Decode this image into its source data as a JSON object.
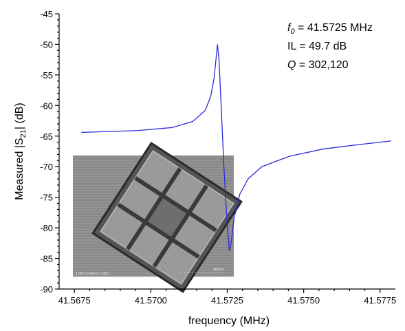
{
  "chart_data": {
    "type": "line",
    "x_label": "frequency (MHz)",
    "y_label": [
      "Measured |S",
      "21",
      "| (dB)"
    ],
    "annotations": [
      [
        "f",
        "0",
        " = 41.5725 MHz"
      ],
      [
        "IL = 49.7 dB"
      ],
      [
        "Q",
        " = 302,120"
      ]
    ],
    "inset_labels": [
      "1.5kV 12.8mm L×350",
      "400um"
    ],
    "color": "#2b2bd6",
    "x": [
      41.56773,
      41.56957,
      41.5707,
      41.57137,
      41.57178,
      41.57196,
      41.57207,
      41.57214,
      41.57218,
      41.57223,
      41.5723,
      41.57239,
      41.57248,
      41.57257,
      41.57264,
      41.57272,
      41.57291,
      41.57318,
      41.57363,
      41.57453,
      41.57565,
      41.57678,
      41.57786
    ],
    "values": [
      -64.4,
      -64.1,
      -63.6,
      -62.6,
      -60.8,
      -58.5,
      -55.5,
      -52.0,
      -50.0,
      -52.5,
      -60,
      -70,
      -78,
      -83.8,
      -82,
      -78.5,
      -74.5,
      -72,
      -70,
      -68.3,
      -67.1,
      -66.4,
      -65.8
    ],
    "xlim": [
      41.567,
      41.578
    ],
    "xticks": [
      41.5675,
      {
        "value": 41.57,
        "label": "41.5700"
      },
      41.5725,
      {
        "value": 41.575,
        "label": "41.5750"
      },
      41.5775
    ],
    "ylim": [
      -90,
      -45
    ],
    "yticks": [
      -90,
      -85,
      -80,
      -75,
      -70,
      -65,
      -60,
      -55,
      -50,
      -45
    ]
  }
}
